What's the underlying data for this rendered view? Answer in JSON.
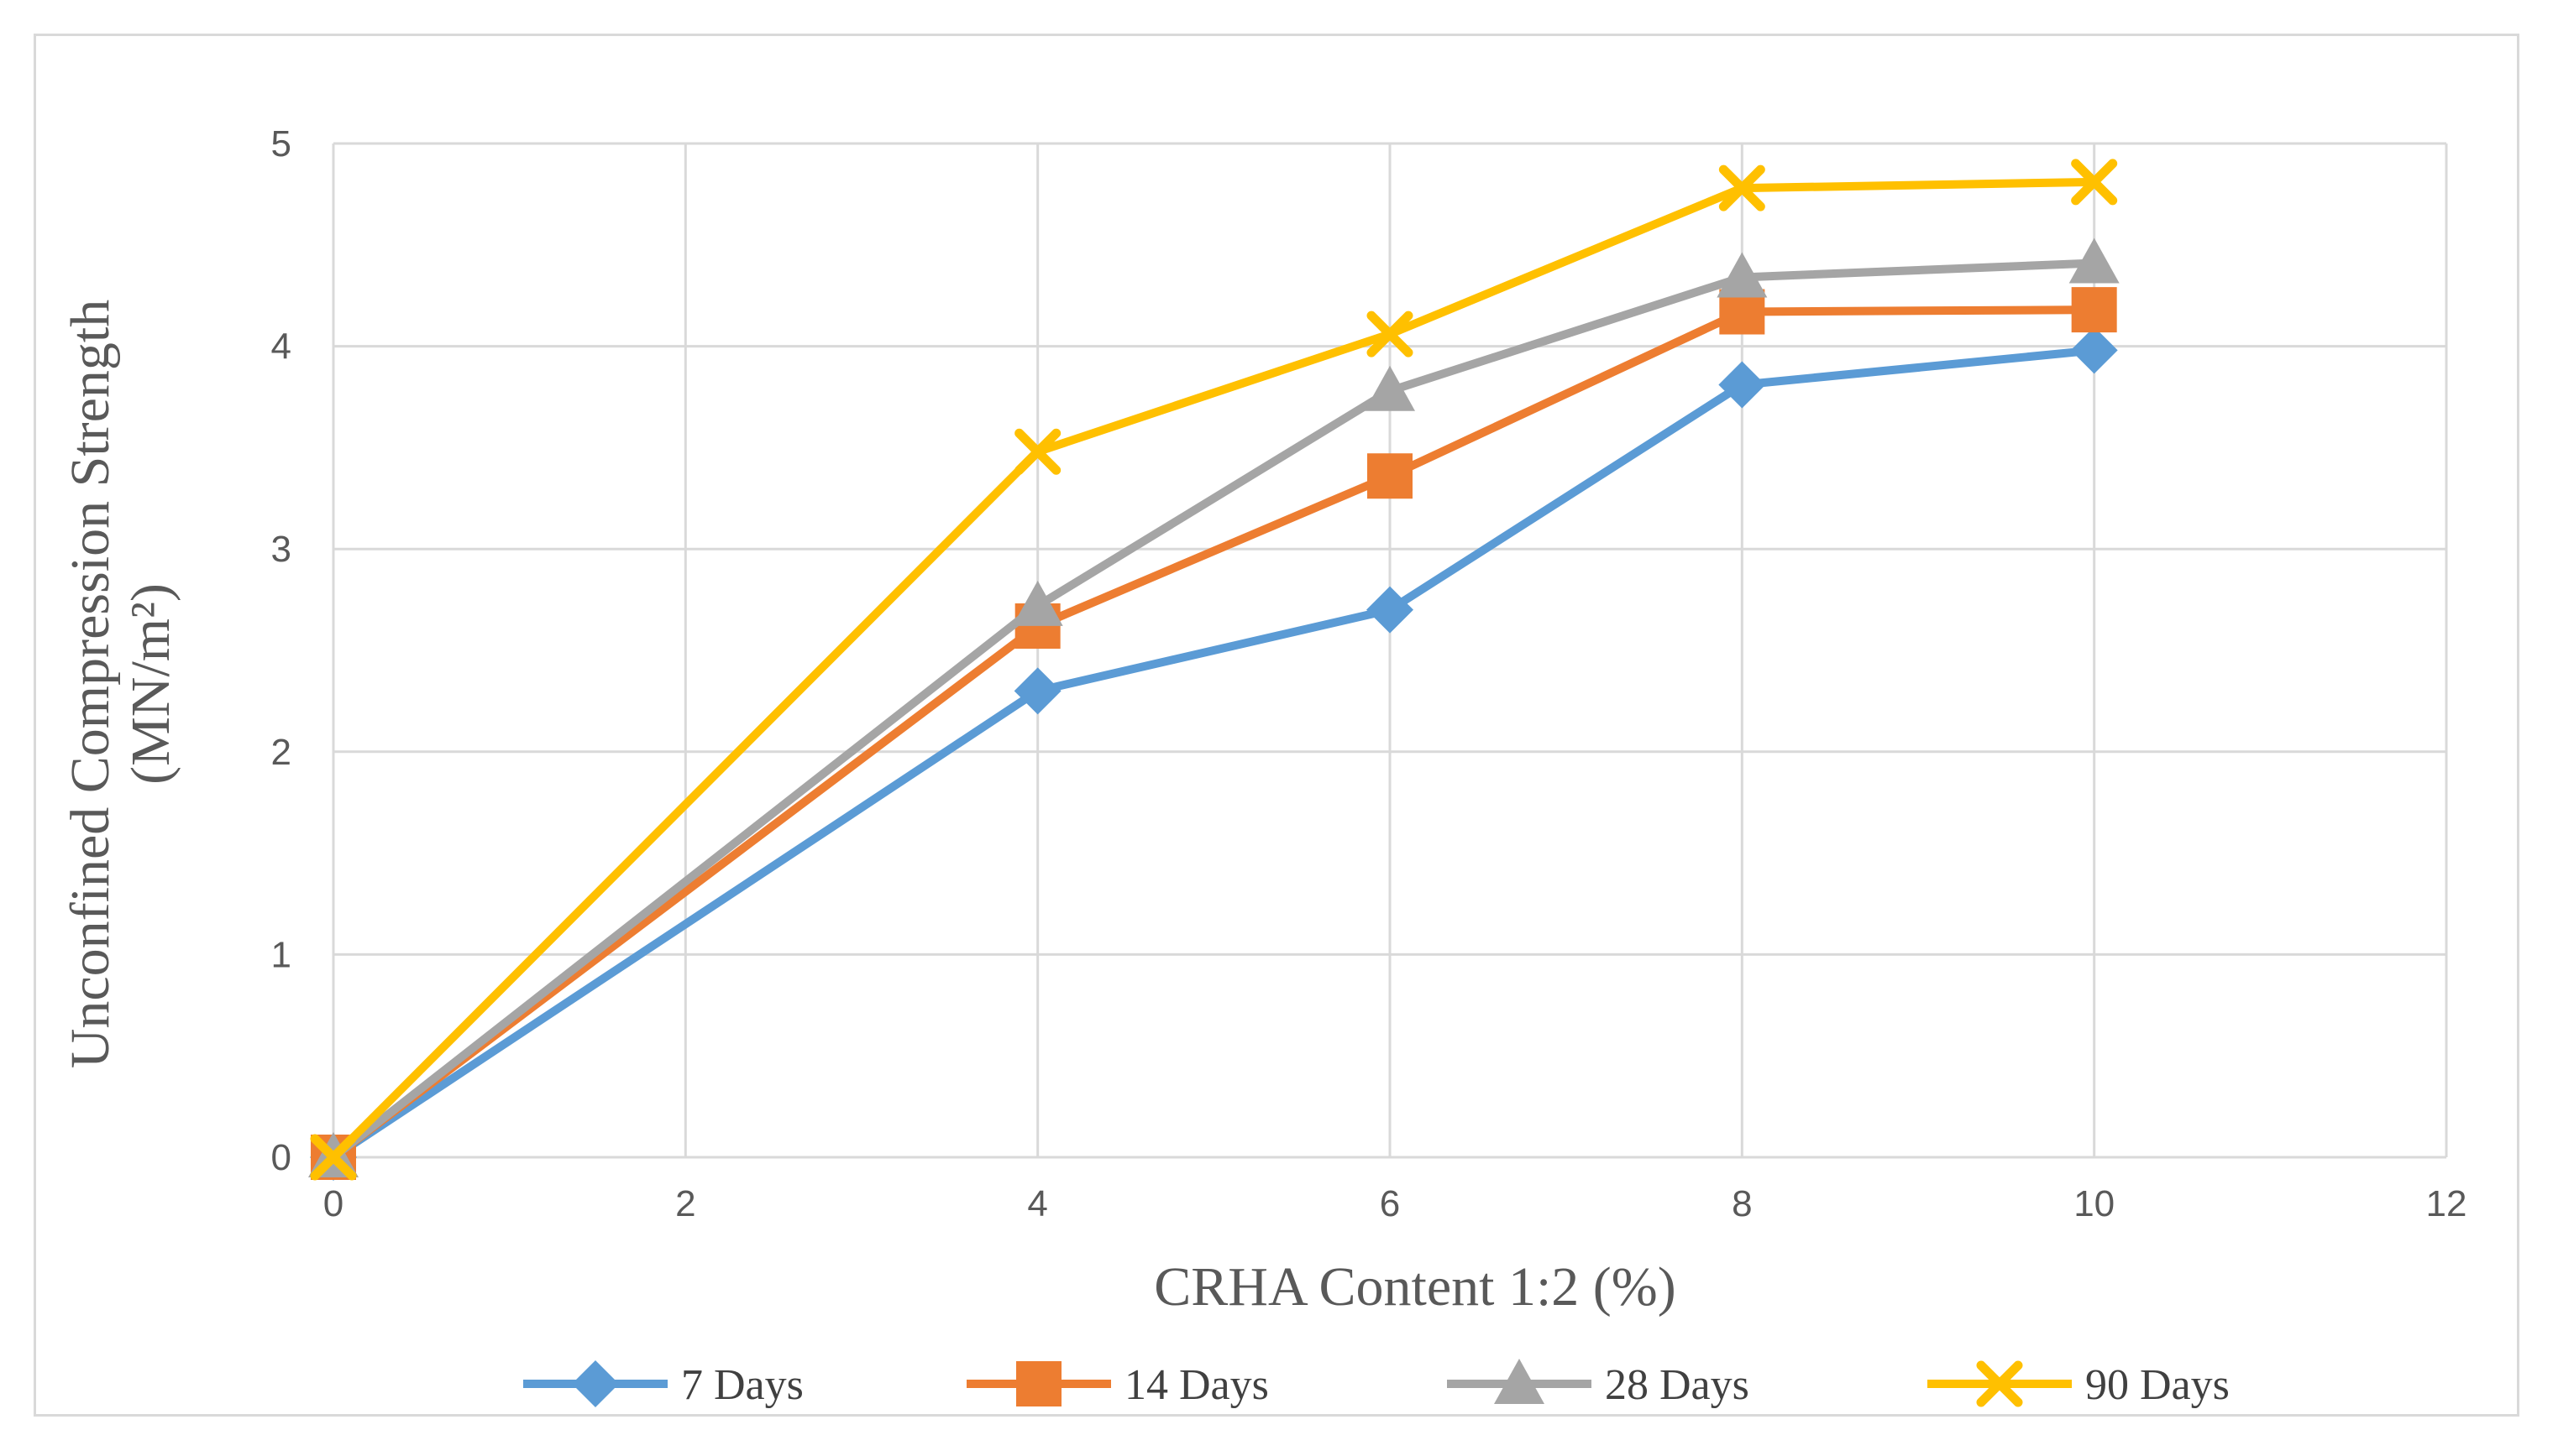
{
  "chart_data": {
    "type": "line",
    "title": "",
    "xlabel": "CRHA Content 1:2 (%)",
    "ylabel": "Unconfined Compression Strength",
    "ylabel_line2": "(MN/m²)",
    "xlim": [
      0,
      12
    ],
    "ylim": [
      0,
      5
    ],
    "xticks": [
      "0",
      "2",
      "4",
      "6",
      "8",
      "10",
      "12"
    ],
    "yticks": [
      "0",
      "1",
      "2",
      "3",
      "4",
      "5"
    ],
    "grid": true,
    "legend_position": "bottom",
    "x": [
      0,
      4,
      6,
      8,
      10
    ],
    "series": [
      {
        "name": "7 Days",
        "color": "#5b9bd5",
        "marker": "diamond",
        "values": [
          0,
          2.3,
          2.7,
          3.81,
          3.98
        ]
      },
      {
        "name": "14 Days",
        "color": "#ed7d31",
        "marker": "square",
        "values": [
          0,
          2.62,
          3.36,
          4.17,
          4.18
        ]
      },
      {
        "name": "28 Days",
        "color": "#a5a5a5",
        "marker": "triangle",
        "values": [
          0,
          2.72,
          3.78,
          4.34,
          4.41
        ]
      },
      {
        "name": "90 Days",
        "color": "#ffc000",
        "marker": "x",
        "values": [
          0,
          3.48,
          4.06,
          4.78,
          4.81
        ]
      }
    ]
  }
}
